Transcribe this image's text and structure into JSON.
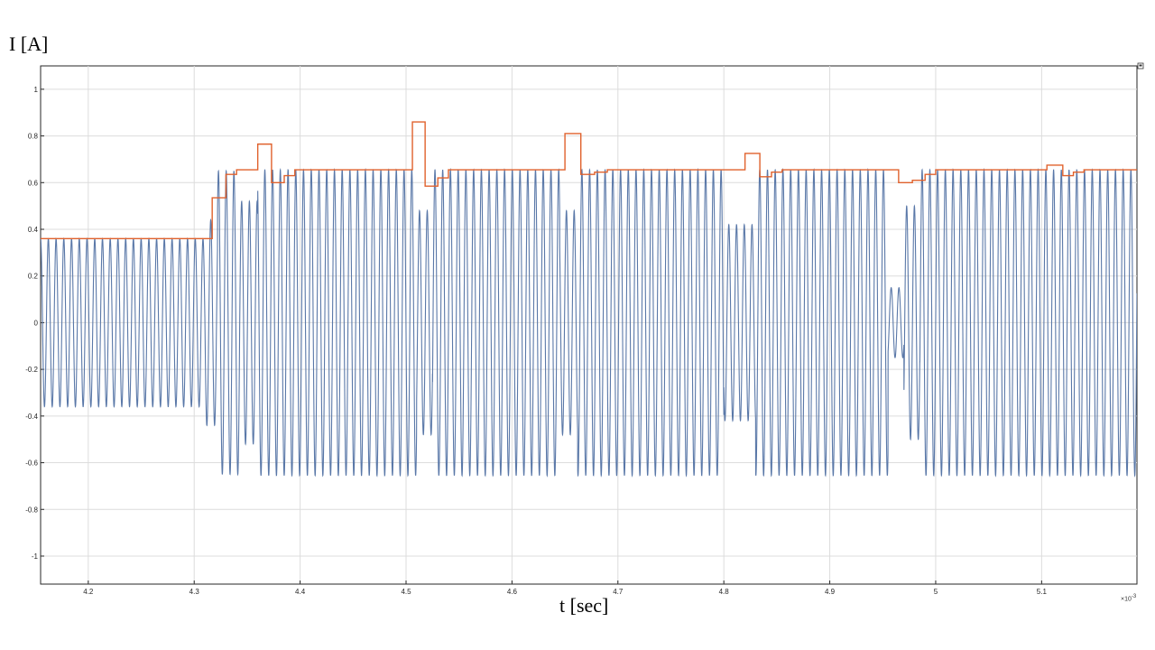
{
  "labels": {
    "ylabel": "I [A]",
    "xlabel": "t [sec]",
    "x_exponent_base": "×10",
    "x_exponent_power": "-3"
  },
  "chart_data": {
    "type": "line",
    "title": "",
    "xlabel": "t [sec]",
    "ylabel": "I [A]",
    "x_scale_note": "×10^-3",
    "xlim": [
      4.155,
      5.19
    ],
    "ylim": [
      -1.12,
      1.1
    ],
    "grid": true,
    "x_ticks": [
      4.2,
      4.3,
      4.4,
      4.5,
      4.6,
      4.7,
      4.8,
      4.9,
      5.0,
      5.1
    ],
    "x_tick_labels": [
      "4.2",
      "4.3",
      "4.4",
      "4.5",
      "4.6",
      "4.7",
      "4.8",
      "4.9",
      "5",
      "5.1"
    ],
    "y_ticks": [
      -1,
      -0.8,
      -0.6,
      -0.4,
      -0.2,
      0,
      0.2,
      0.4,
      0.6,
      0.8,
      1
    ],
    "y_tick_labels": [
      "-1",
      "-0.8",
      "-0.6",
      "-0.4",
      "-0.2",
      "0",
      "0.2",
      "0.4",
      "0.6",
      "0.8",
      "1"
    ],
    "series": [
      {
        "color": "#5a78a8",
        "kind": "oscillation",
        "period": 0.0073,
        "segments": [
          {
            "x": [
              4.155,
              4.31
            ],
            "amp": 0.36
          },
          {
            "x": [
              4.31,
              4.322
            ],
            "amp": 0.44
          },
          {
            "x": [
              4.322,
              4.343
            ],
            "amp": 0.65
          },
          {
            "x": [
              4.343,
              4.36
            ],
            "amp": 0.52
          },
          {
            "x": [
              4.36,
              4.51
            ],
            "amp": 0.655
          },
          {
            "x": [
              4.51,
              4.525
            ],
            "amp": 0.48
          },
          {
            "x": [
              4.525,
              4.645
            ],
            "amp": 0.655
          },
          {
            "x": [
              4.645,
              4.662
            ],
            "amp": 0.48
          },
          {
            "x": [
              4.662,
              4.8
            ],
            "amp": 0.655
          },
          {
            "x": [
              4.8,
              4.83
            ],
            "amp": 0.42
          },
          {
            "x": [
              4.83,
              4.955
            ],
            "amp": 0.655
          },
          {
            "x": [
              4.955,
              4.97
            ],
            "amp": 0.15
          },
          {
            "x": [
              4.97,
              4.985
            ],
            "amp": 0.5
          },
          {
            "x": [
              4.985,
              5.19
            ],
            "amp": 0.655
          }
        ]
      },
      {
        "color": "#e0612c",
        "kind": "step",
        "x": [
          4.155,
          4.317,
          4.33,
          4.34,
          4.36,
          4.373,
          4.385,
          4.395,
          4.506,
          4.518,
          4.53,
          4.54,
          4.65,
          4.665,
          4.678,
          4.69,
          4.82,
          4.834,
          4.845,
          4.855,
          4.965,
          4.978,
          4.99,
          5.0,
          5.105,
          5.12,
          5.13,
          5.14,
          5.19
        ],
        "y": [
          0.36,
          0.535,
          0.635,
          0.655,
          0.765,
          0.6,
          0.63,
          0.655,
          0.86,
          0.585,
          0.62,
          0.655,
          0.81,
          0.635,
          0.645,
          0.655,
          0.725,
          0.625,
          0.645,
          0.655,
          0.6,
          0.61,
          0.635,
          0.655,
          0.675,
          0.63,
          0.645,
          0.655,
          0.655
        ]
      }
    ]
  }
}
